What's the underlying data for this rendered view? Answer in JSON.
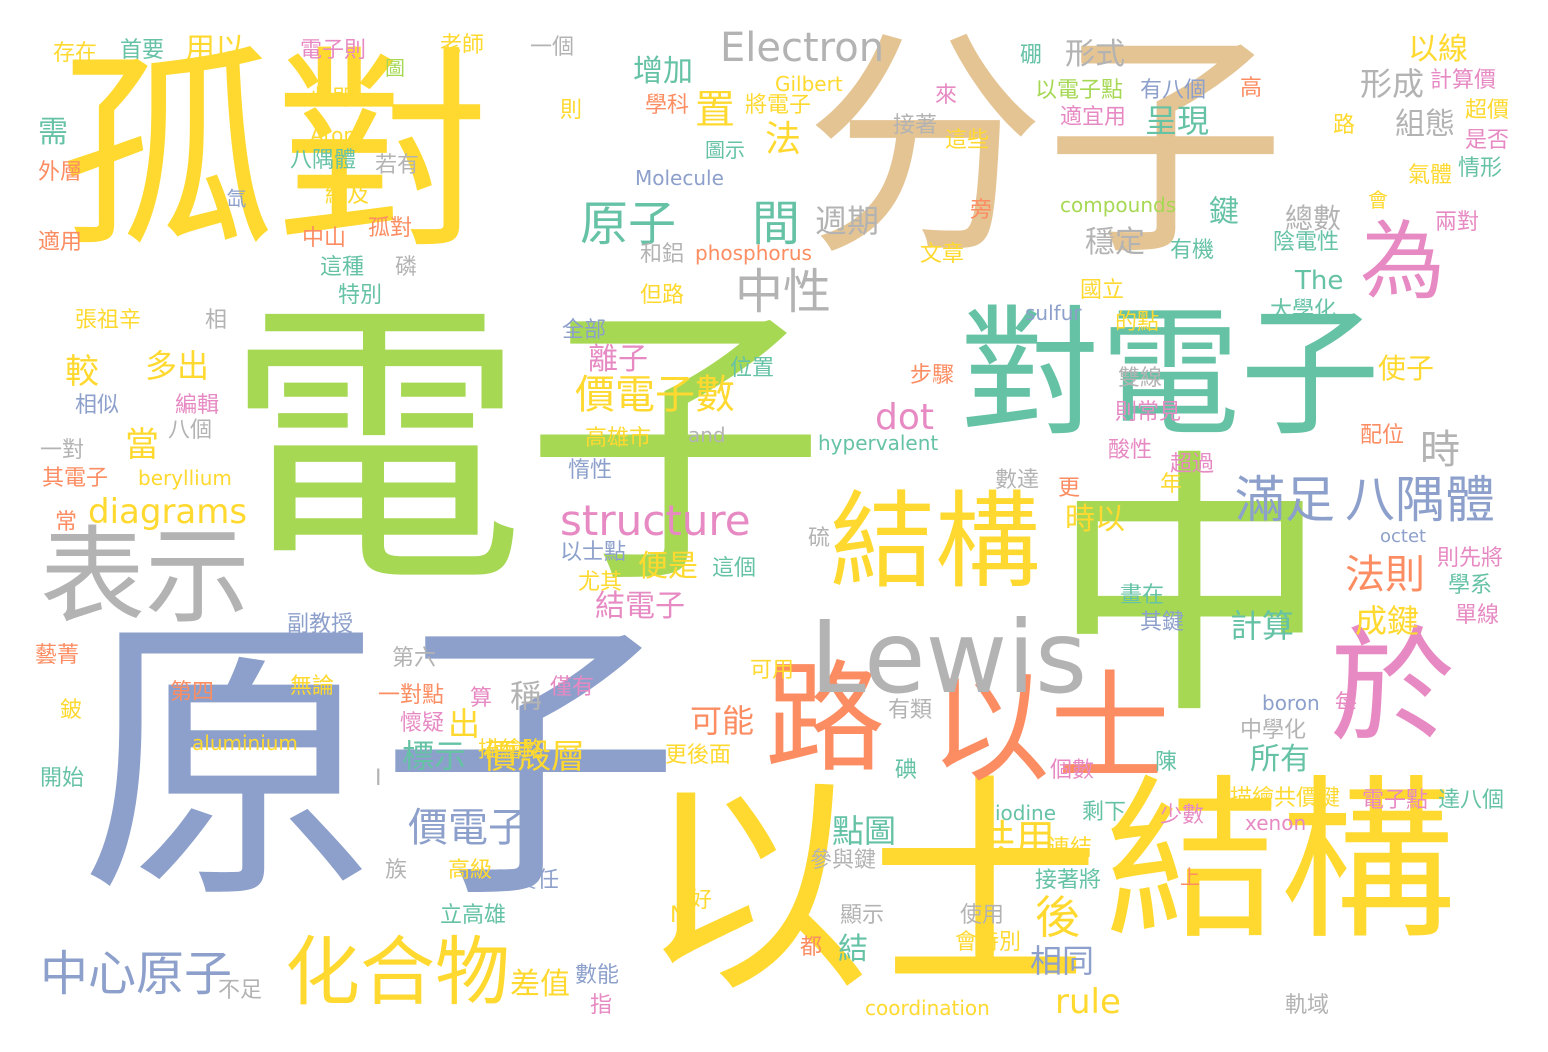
{
  "palette": {
    "green": "#a6d854",
    "blue": "#8da0cb",
    "yellow": "#ffd92f",
    "tan": "#e5c494",
    "teal": "#66c2a5",
    "orange": "#fc8d62",
    "pink": "#e78ac3",
    "gray": "#b3b3b3"
  },
  "words": [
    {
      "text": "電子",
      "weight": 1.0,
      "color": "green"
    },
    {
      "text": "原子",
      "weight": 0.95,
      "color": "blue"
    },
    {
      "text": "中",
      "weight": 0.8,
      "color": "green"
    },
    {
      "text": "分子",
      "weight": 0.78,
      "color": "tan"
    },
    {
      "text": "以士",
      "weight": 0.72,
      "color": "yellow"
    },
    {
      "text": "孤對",
      "weight": 0.68,
      "color": "yellow"
    },
    {
      "text": "結構",
      "weight": 0.6,
      "color": "yellow"
    },
    {
      "text": "對電子",
      "weight": 0.5,
      "color": "teal"
    },
    {
      "text": "路",
      "weight": 0.4,
      "color": "orange"
    },
    {
      "text": "以士",
      "weight": 0.4,
      "color": "orange"
    },
    {
      "text": "於",
      "weight": 0.4,
      "color": "pink"
    },
    {
      "text": "結構",
      "weight": 0.34,
      "color": "yellow"
    },
    {
      "text": "Lewis",
      "weight": 0.34,
      "color": "gray"
    },
    {
      "text": "表示",
      "weight": 0.3,
      "color": "gray"
    },
    {
      "text": "為",
      "weight": 0.28,
      "color": "pink"
    },
    {
      "text": "化合物",
      "weight": 0.22,
      "color": "yellow"
    },
    {
      "text": "中心原子",
      "weight": 0.14,
      "color": "blue"
    },
    {
      "text": "Electron",
      "weight": 0.13,
      "color": "gray"
    },
    {
      "text": "滿足",
      "weight": 0.18,
      "color": "blue"
    },
    {
      "text": "八隅體",
      "weight": 0.18,
      "color": "blue"
    },
    {
      "text": "法則",
      "weight": 0.14,
      "color": "orange"
    },
    {
      "text": "structure",
      "weight": 0.13,
      "color": "pink"
    },
    {
      "text": "原子",
      "weight": 0.14,
      "color": "teal"
    },
    {
      "text": "間",
      "weight": 0.14,
      "color": "teal"
    },
    {
      "text": "中性",
      "weight": 0.14,
      "color": "gray"
    },
    {
      "text": "價電子數",
      "weight": 0.13,
      "color": "yellow"
    },
    {
      "text": "價電子",
      "weight": 0.12,
      "color": "blue"
    },
    {
      "text": "價殼層",
      "weight": 0.11,
      "color": "yellow"
    },
    {
      "text": "diagrams",
      "weight": 0.11,
      "color": "yellow"
    },
    {
      "text": "dot",
      "weight": 0.12,
      "color": "pink"
    },
    {
      "text": "形式",
      "weight": 0.1,
      "color": "gray"
    },
    {
      "text": "呈現",
      "weight": 0.1,
      "color": "teal"
    },
    {
      "text": "形成",
      "weight": 0.1,
      "color": "gray"
    },
    {
      "text": "以線",
      "weight": 0.1,
      "color": "yellow"
    },
    {
      "text": "組態",
      "weight": 0.1,
      "color": "gray"
    },
    {
      "text": "增加",
      "weight": 0.1,
      "color": "teal"
    },
    {
      "text": "置",
      "weight": 0.14,
      "color": "yellow"
    },
    {
      "text": "法",
      "weight": 0.12,
      "color": "yellow"
    },
    {
      "text": "週期",
      "weight": 0.11,
      "color": "gray"
    },
    {
      "text": "穩定",
      "weight": 0.09,
      "color": "gray"
    },
    {
      "text": "時",
      "weight": 0.12,
      "color": "gray"
    },
    {
      "text": "時以",
      "weight": 0.09,
      "color": "yellow"
    },
    {
      "text": "共用",
      "weight": 0.1,
      "color": "yellow"
    },
    {
      "text": "後",
      "weight": 0.12,
      "color": "yellow"
    },
    {
      "text": "點圖",
      "weight": 0.1,
      "color": "teal"
    },
    {
      "text": "相同",
      "weight": 0.1,
      "color": "blue"
    },
    {
      "text": "rule",
      "weight": 0.1,
      "color": "yellow"
    },
    {
      "text": "計算",
      "weight": 0.1,
      "color": "teal"
    },
    {
      "text": "成鍵",
      "weight": 0.1,
      "color": "yellow"
    },
    {
      "text": "所有",
      "weight": 0.09,
      "color": "teal"
    },
    {
      "text": "可能",
      "weight": 0.09,
      "color": "orange"
    },
    {
      "text": "便是",
      "weight": 0.08,
      "color": "yellow"
    },
    {
      "text": "結電子",
      "weight": 0.08,
      "color": "pink"
    },
    {
      "text": "離子",
      "weight": 0.09,
      "color": "pink"
    },
    {
      "text": "標示",
      "weight": 0.09,
      "color": "teal"
    },
    {
      "text": "出",
      "weight": 0.09,
      "color": "yellow"
    },
    {
      "text": "稱",
      "weight": 0.09,
      "color": "gray"
    },
    {
      "text": "多出",
      "weight": 0.09,
      "color": "yellow"
    },
    {
      "text": "較",
      "weight": 0.1,
      "color": "yellow"
    },
    {
      "text": "當",
      "weight": 0.09,
      "color": "yellow"
    },
    {
      "text": "需",
      "weight": 0.09,
      "color": "teal"
    },
    {
      "text": "用以",
      "weight": 0.08,
      "color": "yellow"
    },
    {
      "text": "鍵",
      "weight": 0.08,
      "color": "teal"
    },
    {
      "text": "總數",
      "weight": 0.08,
      "color": "gray"
    },
    {
      "text": "The",
      "weight": 0.08,
      "color": "teal"
    },
    {
      "text": "使子",
      "weight": 0.08,
      "color": "yellow"
    },
    {
      "text": "差值",
      "weight": 0.08,
      "color": "yellow"
    },
    {
      "text": "結",
      "weight": 0.08,
      "color": "teal"
    },
    {
      "text": "Gilbert",
      "weight": 0.06,
      "color": "yellow"
    },
    {
      "text": "Atom",
      "weight": 0.06,
      "color": "yellow"
    },
    {
      "text": "Molecule",
      "weight": 0.06,
      "color": "blue"
    },
    {
      "text": "compounds",
      "weight": 0.06,
      "color": "green"
    },
    {
      "text": "phosphorus",
      "weight": 0.06,
      "color": "orange"
    },
    {
      "text": "sulfur",
      "weight": 0.06,
      "color": "blue"
    },
    {
      "text": "hypervalent",
      "weight": 0.06,
      "color": "teal"
    },
    {
      "text": "and",
      "weight": 0.06,
      "color": "gray"
    },
    {
      "text": "beryllium",
      "weight": 0.06,
      "color": "yellow"
    },
    {
      "text": "aluminium",
      "weight": 0.06,
      "color": "yellow"
    },
    {
      "text": "boron",
      "weight": 0.06,
      "color": "blue"
    },
    {
      "text": "iodine",
      "weight": 0.06,
      "color": "teal"
    },
    {
      "text": "xenon",
      "weight": 0.06,
      "color": "pink"
    },
    {
      "text": "octet",
      "weight": 0.05,
      "color": "blue"
    },
    {
      "text": "coordination",
      "weight": 0.06,
      "color": "yellow"
    },
    {
      "text": "存在",
      "weight": 0.05,
      "color": "yellow"
    },
    {
      "text": "首要",
      "weight": 0.05,
      "color": "teal"
    },
    {
      "text": "電子則",
      "weight": 0.05,
      "color": "pink"
    },
    {
      "text": "老師",
      "weight": 0.05,
      "color": "yellow"
    },
    {
      "text": "一個",
      "weight": 0.05,
      "color": "gray"
    },
    {
      "text": "此即",
      "weight": 0.05,
      "color": "yellow"
    },
    {
      "text": "圖",
      "weight": 0.04,
      "color": "green"
    },
    {
      "text": "則",
      "weight": 0.05,
      "color": "yellow"
    },
    {
      "text": "學科",
      "weight": 0.05,
      "color": "orange"
    },
    {
      "text": "將電子",
      "weight": 0.05,
      "color": "yellow"
    },
    {
      "text": "硼",
      "weight": 0.05,
      "color": "teal"
    },
    {
      "text": "以電子點",
      "weight": 0.05,
      "color": "green"
    },
    {
      "text": "有八個",
      "weight": 0.05,
      "color": "blue"
    },
    {
      "text": "高",
      "weight": 0.05,
      "color": "orange"
    },
    {
      "text": "計算價",
      "weight": 0.05,
      "color": "pink"
    },
    {
      "text": "超價",
      "weight": 0.05,
      "color": "yellow"
    },
    {
      "text": "是否",
      "weight": 0.05,
      "color": "pink"
    },
    {
      "text": "情形",
      "weight": 0.05,
      "color": "teal"
    },
    {
      "text": "氣體",
      "weight": 0.05,
      "color": "yellow"
    },
    {
      "text": "外層",
      "weight": 0.05,
      "color": "orange"
    },
    {
      "text": "八隅體",
      "weight": 0.05,
      "color": "teal"
    },
    {
      "text": "若有",
      "weight": 0.05,
      "color": "gray"
    },
    {
      "text": "圖示",
      "weight": 0.04,
      "color": "teal"
    },
    {
      "text": "接著",
      "weight": 0.05,
      "color": "gray"
    },
    {
      "text": "這些",
      "weight": 0.05,
      "color": "yellow"
    },
    {
      "text": "來",
      "weight": 0.05,
      "color": "pink"
    },
    {
      "text": "適宜用",
      "weight": 0.05,
      "color": "pink"
    },
    {
      "text": "路",
      "weight": 0.05,
      "color": "yellow"
    },
    {
      "text": "會",
      "weight": 0.04,
      "color": "yellow"
    },
    {
      "text": "結及",
      "weight": 0.05,
      "color": "yellow"
    },
    {
      "text": "氙",
      "weight": 0.04,
      "color": "blue"
    },
    {
      "text": "適用",
      "weight": 0.05,
      "color": "orange"
    },
    {
      "text": "中山",
      "weight": 0.05,
      "color": "orange"
    },
    {
      "text": "孤對",
      "weight": 0.05,
      "color": "orange"
    },
    {
      "text": "旁",
      "weight": 0.05,
      "color": "orange"
    },
    {
      "text": "文章",
      "weight": 0.05,
      "color": "yellow"
    },
    {
      "text": "和鋁",
      "weight": 0.05,
      "color": "gray"
    },
    {
      "text": "有機",
      "weight": 0.05,
      "color": "teal"
    },
    {
      "text": "陰電性",
      "weight": 0.05,
      "color": "teal"
    },
    {
      "text": "兩對",
      "weight": 0.05,
      "color": "pink"
    },
    {
      "text": "這種",
      "weight": 0.05,
      "color": "teal"
    },
    {
      "text": "磷",
      "weight": 0.05,
      "color": "gray"
    },
    {
      "text": "特別",
      "weight": 0.05,
      "color": "teal"
    },
    {
      "text": "但路",
      "weight": 0.05,
      "color": "yellow"
    },
    {
      "text": "國立",
      "weight": 0.05,
      "color": "yellow"
    },
    {
      "text": "大學化",
      "weight": 0.05,
      "color": "teal"
    },
    {
      "text": "的點",
      "weight": 0.05,
      "color": "yellow"
    },
    {
      "text": "張祖辛",
      "weight": 0.05,
      "color": "yellow"
    },
    {
      "text": "相",
      "weight": 0.05,
      "color": "gray"
    },
    {
      "text": "全部",
      "weight": 0.05,
      "color": "blue"
    },
    {
      "text": "位置",
      "weight": 0.05,
      "color": "teal"
    },
    {
      "text": "步驟",
      "weight": 0.05,
      "color": "orange"
    },
    {
      "text": "雙線",
      "weight": 0.05,
      "color": "gray"
    },
    {
      "text": "相似",
      "weight": 0.05,
      "color": "blue"
    },
    {
      "text": "編輯",
      "weight": 0.05,
      "color": "pink"
    },
    {
      "text": "八個",
      "weight": 0.05,
      "color": "gray"
    },
    {
      "text": "高雄市",
      "weight": 0.05,
      "color": "yellow"
    },
    {
      "text": "則常見",
      "weight": 0.05,
      "color": "pink"
    },
    {
      "text": "酸性",
      "weight": 0.05,
      "color": "pink"
    },
    {
      "text": "配位",
      "weight": 0.05,
      "color": "orange"
    },
    {
      "text": "一對",
      "weight": 0.05,
      "color": "gray"
    },
    {
      "text": "其電子",
      "weight": 0.05,
      "color": "orange"
    },
    {
      "text": "惰性",
      "weight": 0.05,
      "color": "blue"
    },
    {
      "text": "數達",
      "weight": 0.05,
      "color": "gray"
    },
    {
      "text": "更",
      "weight": 0.05,
      "color": "orange"
    },
    {
      "text": "超過",
      "weight": 0.05,
      "color": "pink"
    },
    {
      "text": "年",
      "weight": 0.05,
      "color": "yellow"
    },
    {
      "text": "常",
      "weight": 0.05,
      "color": "orange"
    },
    {
      "text": "硫",
      "weight": 0.05,
      "color": "gray"
    },
    {
      "text": "以士點",
      "weight": 0.05,
      "color": "blue"
    },
    {
      "text": "尤其",
      "weight": 0.05,
      "color": "yellow"
    },
    {
      "text": "這個",
      "weight": 0.05,
      "color": "teal"
    },
    {
      "text": "則先將",
      "weight": 0.05,
      "color": "pink"
    },
    {
      "text": "學系",
      "weight": 0.05,
      "color": "teal"
    },
    {
      "text": "畫在",
      "weight": 0.05,
      "color": "teal"
    },
    {
      "text": "其鍵",
      "weight": 0.05,
      "color": "blue"
    },
    {
      "text": "單線",
      "weight": 0.05,
      "color": "pink"
    },
    {
      "text": "副教授",
      "weight": 0.05,
      "color": "blue"
    },
    {
      "text": "第六",
      "weight": 0.05,
      "color": "gray"
    },
    {
      "text": "藝菁",
      "weight": 0.05,
      "color": "orange"
    },
    {
      "text": "可用",
      "weight": 0.05,
      "color": "yellow"
    },
    {
      "text": "第四",
      "weight": 0.05,
      "color": "orange"
    },
    {
      "text": "無論",
      "weight": 0.05,
      "color": "yellow"
    },
    {
      "text": "僅有",
      "weight": 0.05,
      "color": "pink"
    },
    {
      "text": "一對點",
      "weight": 0.05,
      "color": "orange"
    },
    {
      "text": "懷疑",
      "weight": 0.05,
      "color": "pink"
    },
    {
      "text": "算",
      "weight": 0.05,
      "color": "pink"
    },
    {
      "text": "描繪路",
      "weight": 0.05,
      "color": "yellow"
    },
    {
      "text": "有類",
      "weight": 0.05,
      "color": "gray"
    },
    {
      "text": "每",
      "weight": 0.05,
      "color": "pink"
    },
    {
      "text": "鈹",
      "weight": 0.05,
      "color": "yellow"
    },
    {
      "text": "更後面",
      "weight": 0.05,
      "color": "yellow"
    },
    {
      "text": "中學化",
      "weight": 0.05,
      "color": "gray"
    },
    {
      "text": "開始",
      "weight": 0.05,
      "color": "teal"
    },
    {
      "text": "碘",
      "weight": 0.05,
      "color": "teal"
    },
    {
      "text": "陳",
      "weight": 0.05,
      "color": "teal"
    },
    {
      "text": "I",
      "weight": 0.05,
      "color": "gray"
    },
    {
      "text": "個數",
      "weight": 0.05,
      "color": "pink"
    },
    {
      "text": "描繪共價鍵",
      "weight": 0.05,
      "color": "yellow"
    },
    {
      "text": "電子點",
      "weight": 0.05,
      "color": "pink"
    },
    {
      "text": "達八個",
      "weight": 0.05,
      "color": "teal"
    },
    {
      "text": "剩下",
      "weight": 0.05,
      "color": "teal"
    },
    {
      "text": "少數",
      "weight": 0.05,
      "color": "pink"
    },
    {
      "text": "族",
      "weight": 0.05,
      "color": "gray"
    },
    {
      "text": "高級",
      "weight": 0.05,
      "color": "yellow"
    },
    {
      "text": "責任",
      "weight": 0.05,
      "color": "blue"
    },
    {
      "text": "參與鍵",
      "weight": 0.05,
      "color": "gray"
    },
    {
      "text": "連結",
      "weight": 0.05,
      "color": "yellow"
    },
    {
      "text": "上",
      "weight": 0.04,
      "color": "orange"
    },
    {
      "text": "接著將",
      "weight": 0.05,
      "color": "teal"
    },
    {
      "text": "立高雄",
      "weight": 0.05,
      "color": "teal"
    },
    {
      "text": "N",
      "weight": 0.05,
      "color": "yellow"
    },
    {
      "text": "好",
      "weight": 0.05,
      "color": "yellow"
    },
    {
      "text": "顯示",
      "weight": 0.05,
      "color": "gray"
    },
    {
      "text": "使用",
      "weight": 0.05,
      "color": "gray"
    },
    {
      "text": "會特別",
      "weight": 0.05,
      "color": "yellow"
    },
    {
      "text": "都",
      "weight": 0.05,
      "color": "orange"
    },
    {
      "text": "不足",
      "weight": 0.05,
      "color": "gray"
    },
    {
      "text": "數能",
      "weight": 0.05,
      "color": "blue"
    },
    {
      "text": "指",
      "weight": 0.05,
      "color": "pink"
    },
    {
      "text": "軌域",
      "weight": 0.05,
      "color": "gray"
    }
  ]
}
